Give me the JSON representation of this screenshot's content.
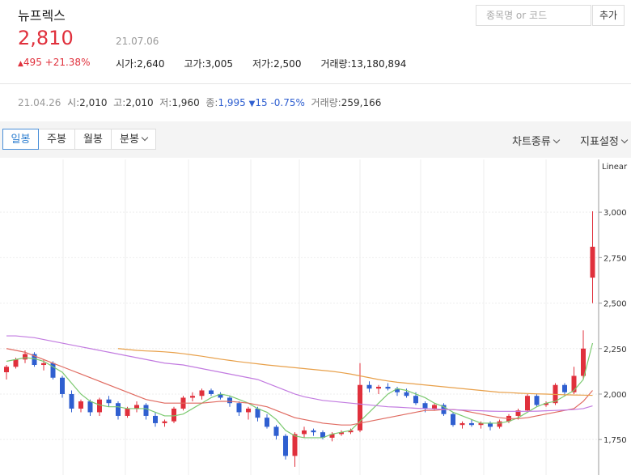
{
  "header": {
    "title": "뉴프렉스",
    "price": "2,810",
    "date": "21.07.06",
    "change": "495",
    "change_pct": "+21.38%",
    "stats": [
      {
        "label": "시가:",
        "value": "2,640"
      },
      {
        "label": "고가:",
        "value": "3,005"
      },
      {
        "label": "저가:",
        "value": "2,500"
      },
      {
        "label": "거래량:",
        "value": "13,180,894"
      }
    ],
    "search_placeholder": "종목명 or 코드",
    "add_button": "추가"
  },
  "hover": {
    "date": "21.04.26",
    "open_label": "시:",
    "open": "2,010",
    "high_label": "고:",
    "high": "2,010",
    "low_label": "저:",
    "low": "1,960",
    "close_label": "종:",
    "close": "1,995",
    "change": "15",
    "change_pct": "-0.75%",
    "volume_label": "거래량:",
    "volume": "259,166"
  },
  "toolbar": {
    "tabs": [
      "일봉",
      "주봉",
      "월봉",
      "분봉"
    ],
    "chart_type": "차트종류",
    "indicator": "지표설정"
  },
  "chart_data": {
    "type": "candlestick",
    "scale_label": "Linear",
    "ylim": [
      1555,
      3290
    ],
    "yticks": [
      {
        "value": 1750,
        "label": "1,750"
      },
      {
        "value": 2000,
        "label": "2,000"
      },
      {
        "value": 2250,
        "label": "2,250"
      },
      {
        "value": 2500,
        "label": "2,500"
      },
      {
        "value": 2750,
        "label": "2,750"
      },
      {
        "value": 3000,
        "label": "3,000"
      }
    ],
    "up_color": "#e0303c",
    "down_color": "#2f5fd0",
    "open": [
      2120,
      2150,
      2190,
      2220,
      2160,
      2170,
      2090,
      2000,
      1920,
      1960,
      1900,
      1970,
      1950,
      1880,
      1920,
      1940,
      1880,
      1840,
      1850,
      1920,
      1980,
      1990,
      2020,
      2000,
      1980,
      1950,
      1900,
      1920,
      1870,
      1820,
      1770,
      1660,
      1780,
      1800,
      1790,
      1760,
      1780,
      1790,
      1800,
      2050,
      2030,
      2040,
      2030,
      2010,
      1990,
      1950,
      1920,
      1940,
      1890,
      1830,
      1840,
      1830,
      1840,
      1820,
      1850,
      1880,
      1910,
      1990,
      1940,
      1950,
      2050,
      2010,
      2100,
      2640
    ],
    "high": [
      2160,
      2200,
      2240,
      2230,
      2190,
      2180,
      2100,
      2020,
      1970,
      1970,
      1980,
      1990,
      1960,
      1930,
      1960,
      1950,
      1900,
      1860,
      1930,
      1990,
      2010,
      2030,
      2030,
      2010,
      1990,
      1960,
      1930,
      1930,
      1890,
      1830,
      1780,
      1790,
      1820,
      1810,
      1800,
      1790,
      1800,
      1810,
      2170,
      2070,
      2050,
      2060,
      2040,
      2030,
      2010,
      1960,
      1950,
      1950,
      1900,
      1850,
      1860,
      1850,
      1850,
      1860,
      1890,
      1920,
      2000,
      2000,
      1960,
      2060,
      2060,
      2150,
      2350,
      3005
    ],
    "low": [
      2080,
      2140,
      2170,
      2150,
      2130,
      2080,
      1980,
      1900,
      1900,
      1880,
      1880,
      1930,
      1860,
      1870,
      1900,
      1860,
      1820,
      1820,
      1840,
      1910,
      1960,
      1970,
      1990,
      1970,
      1930,
      1880,
      1860,
      1850,
      1810,
      1750,
      1640,
      1600,
      1760,
      1770,
      1750,
      1740,
      1770,
      1780,
      1790,
      2010,
      2000,
      2020,
      1990,
      1980,
      1940,
      1900,
      1910,
      1880,
      1820,
      1810,
      1820,
      1810,
      1800,
      1810,
      1840,
      1860,
      1900,
      1930,
      1930,
      1940,
      1990,
      2000,
      2080,
      2500
    ],
    "close": [
      2150,
      2190,
      2220,
      2160,
      2170,
      2090,
      2000,
      1920,
      1960,
      1900,
      1970,
      1950,
      1880,
      1920,
      1940,
      1880,
      1840,
      1850,
      1920,
      1980,
      1990,
      2020,
      2000,
      1980,
      1950,
      1900,
      1920,
      1870,
      1820,
      1770,
      1660,
      1780,
      1800,
      1790,
      1760,
      1780,
      1790,
      1800,
      2050,
      2030,
      2040,
      2030,
      2010,
      1990,
      1950,
      1920,
      1940,
      1890,
      1830,
      1840,
      1830,
      1840,
      1820,
      1850,
      1880,
      1910,
      1990,
      1940,
      1950,
      2050,
      2010,
      2100,
      2250,
      2810
    ],
    "lines": [
      {
        "color": "#7bc96f",
        "values": [
          2180,
          2190,
          2200,
          2195,
          2180,
          2150,
          2120,
          2060,
          2000,
          1960,
          1940,
          1930,
          1930,
          1920,
          1920,
          1920,
          1900,
          1880,
          1880,
          1890,
          1920,
          1950,
          1980,
          2000,
          1990,
          1970,
          1950,
          1920,
          1900,
          1860,
          1800,
          1770,
          1760,
          1760,
          1760,
          1780,
          1790,
          1800,
          1850,
          1900,
          1950,
          2000,
          2030,
          2020,
          2000,
          1980,
          1950,
          1930,
          1900,
          1880,
          1860,
          1840,
          1840,
          1840,
          1850,
          1870,
          1900,
          1930,
          1950,
          1960,
          1990,
          2020,
          2080,
          2280
        ]
      },
      {
        "color": "#e06a60",
        "values": [
          2250,
          2240,
          2230,
          2210,
          2190,
          2170,
          2150,
          2130,
          2110,
          2090,
          2070,
          2050,
          2030,
          2010,
          1990,
          1970,
          1960,
          1950,
          1950,
          1950,
          1950,
          1950,
          1955,
          1960,
          1960,
          1955,
          1950,
          1940,
          1930,
          1910,
          1890,
          1870,
          1860,
          1850,
          1840,
          1835,
          1830,
          1830,
          1840,
          1850,
          1860,
          1870,
          1880,
          1890,
          1900,
          1910,
          1910,
          1915,
          1915,
          1910,
          1900,
          1890,
          1880,
          1870,
          1865,
          1865,
          1870,
          1880,
          1890,
          1900,
          1910,
          1920,
          1960,
          2020
        ]
      },
      {
        "color": "#c27be0",
        "values": [
          2320,
          2320,
          2315,
          2310,
          2300,
          2290,
          2280,
          2270,
          2260,
          2250,
          2240,
          2230,
          2220,
          2210,
          2200,
          2190,
          2180,
          2170,
          2165,
          2160,
          2150,
          2140,
          2130,
          2120,
          2110,
          2100,
          2090,
          2080,
          2060,
          2040,
          2020,
          2000,
          1985,
          1975,
          1965,
          1960,
          1955,
          1950,
          1945,
          1940,
          1935,
          1930,
          1928,
          1925,
          1922,
          1920,
          1918,
          1916,
          1914,
          1912,
          1910,
          1908,
          1906,
          1905,
          1905,
          1905,
          1905,
          1906,
          1908,
          1910,
          1912,
          1915,
          1920,
          1935
        ]
      },
      {
        "color": "#e8a04a",
        "values": [
          null,
          null,
          null,
          null,
          null,
          null,
          null,
          null,
          null,
          null,
          null,
          null,
          2250,
          2245,
          2240,
          2237,
          2235,
          2232,
          2228,
          2222,
          2215,
          2208,
          2200,
          2192,
          2185,
          2178,
          2172,
          2166,
          2160,
          2155,
          2150,
          2145,
          2140,
          2135,
          2130,
          2125,
          2118,
          2110,
          2100,
          2090,
          2080,
          2072,
          2065,
          2060,
          2055,
          2050,
          2045,
          2040,
          2035,
          2030,
          2025,
          2020,
          2015,
          2010,
          2008,
          2005,
          2003,
          2001,
          2000,
          1998,
          1996,
          1995,
          1994,
          1993
        ]
      }
    ]
  }
}
